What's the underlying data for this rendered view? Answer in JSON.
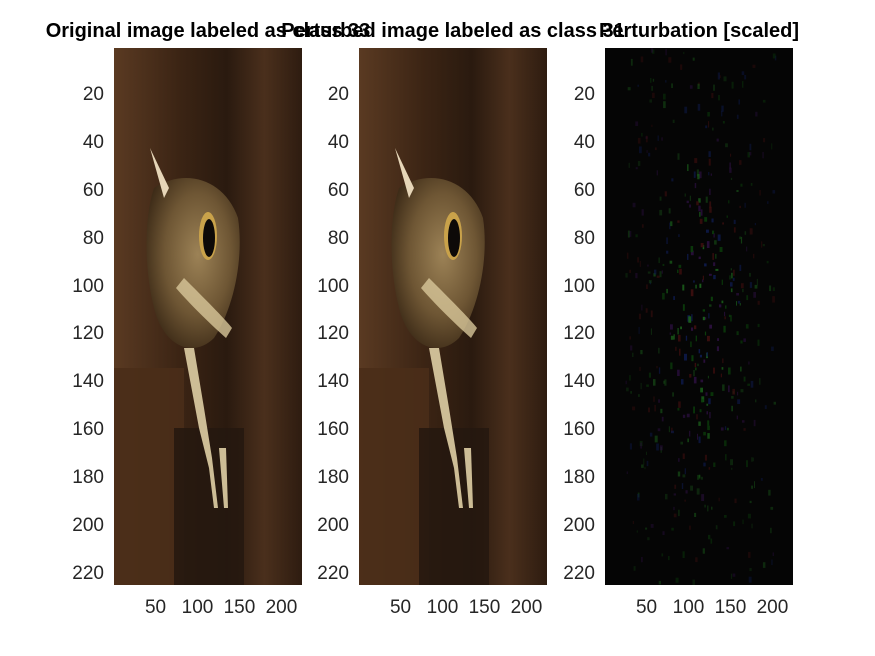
{
  "titles": {
    "original": "Original image labeled as class 33",
    "perturbed": "Perturbed image labeled as class 31",
    "perturbation": "Perturbation [scaled]"
  },
  "axes": {
    "y_ticks": [
      "20",
      "40",
      "60",
      "80",
      "100",
      "120",
      "140",
      "160",
      "180",
      "200",
      "220"
    ],
    "x_ticks": [
      "50",
      "100",
      "150",
      "200"
    ]
  },
  "colors": {
    "background": "#ffffff",
    "tick_text": "#262626",
    "perturbation_bg": "#050505"
  }
}
